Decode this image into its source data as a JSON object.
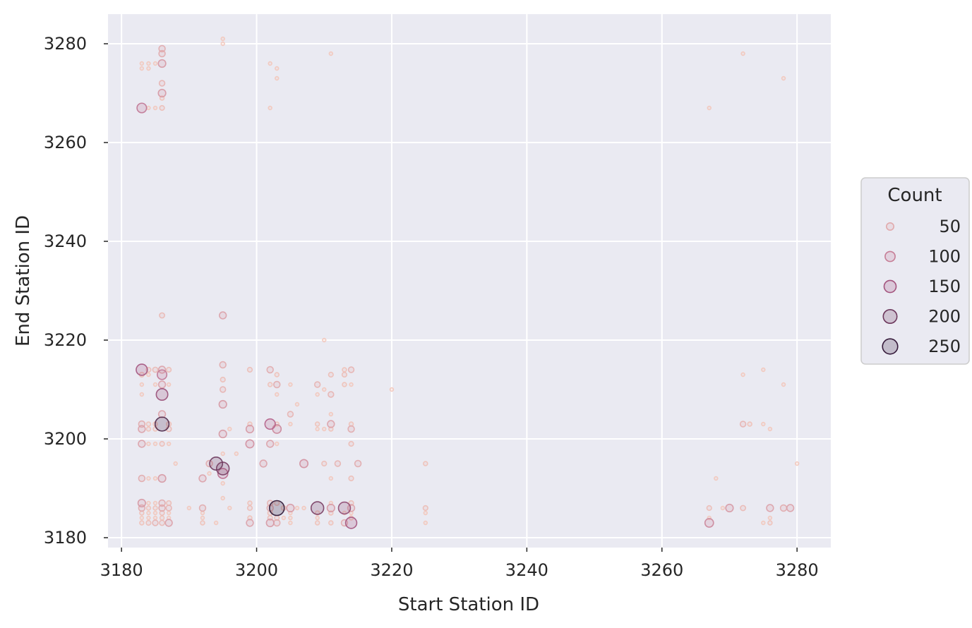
{
  "chart_data": {
    "type": "scatter",
    "xlabel": "Start Station ID",
    "ylabel": "End Station ID",
    "xlim": [
      3178,
      3285
    ],
    "ylim": [
      3178,
      3286
    ],
    "xticks": [
      3180,
      3200,
      3220,
      3240,
      3260,
      3280
    ],
    "yticks": [
      3180,
      3200,
      3220,
      3240,
      3260,
      3280
    ],
    "grid": true,
    "background_color": "#eaeaf2",
    "grid_color": "#ffffff",
    "legend": {
      "title": "Count",
      "placement": "right",
      "entries": [
        {
          "label": "50",
          "value": 50
        },
        {
          "label": "100",
          "value": 100
        },
        {
          "label": "150",
          "value": 150
        },
        {
          "label": "200",
          "value": 200
        },
        {
          "label": "250",
          "value": 250
        }
      ]
    },
    "color_scale": {
      "low": "#f3c7ba",
      "mid": "#b05a85",
      "high": "#2a1433"
    },
    "points": [
      [
        3183,
        3276,
        18
      ],
      [
        3183,
        3275,
        18
      ],
      [
        3184,
        3276,
        18
      ],
      [
        3184,
        3275,
        18
      ],
      [
        3185,
        3276,
        18
      ],
      [
        3186,
        3276,
        70
      ],
      [
        3186,
        3279,
        50
      ],
      [
        3186,
        3278,
        50
      ],
      [
        3186,
        3272,
        40
      ],
      [
        3186,
        3270,
        70
      ],
      [
        3186,
        3269,
        25
      ],
      [
        3183,
        3267,
        110
      ],
      [
        3184,
        3267,
        18
      ],
      [
        3185,
        3267,
        18
      ],
      [
        3186,
        3267,
        30
      ],
      [
        3195,
        3281,
        18
      ],
      [
        3195,
        3280,
        18
      ],
      [
        3202,
        3276,
        18
      ],
      [
        3203,
        3275,
        18
      ],
      [
        3203,
        3273,
        18
      ],
      [
        3202,
        3267,
        18
      ],
      [
        3211,
        3278,
        18
      ],
      [
        3186,
        3225,
        35
      ],
      [
        3195,
        3225,
        60
      ],
      [
        3210,
        3220,
        18
      ],
      [
        3183,
        3214,
        150
      ],
      [
        3184,
        3214,
        30
      ],
      [
        3185,
        3214,
        35
      ],
      [
        3186,
        3214,
        60
      ],
      [
        3187,
        3214,
        30
      ],
      [
        3183,
        3213,
        30
      ],
      [
        3184,
        3213,
        18
      ],
      [
        3186,
        3213,
        110
      ],
      [
        3183,
        3211,
        18
      ],
      [
        3185,
        3211,
        18
      ],
      [
        3186,
        3211,
        60
      ],
      [
        3187,
        3211,
        18
      ],
      [
        3183,
        3209,
        18
      ],
      [
        3186,
        3209,
        160
      ],
      [
        3186,
        3205,
        60
      ],
      [
        3183,
        3203,
        50
      ],
      [
        3184,
        3203,
        25
      ],
      [
        3185,
        3203,
        25
      ],
      [
        3186,
        3203,
        230
      ],
      [
        3187,
        3203,
        30
      ],
      [
        3183,
        3202,
        60
      ],
      [
        3184,
        3202,
        25
      ],
      [
        3185,
        3202,
        25
      ],
      [
        3187,
        3202,
        35
      ],
      [
        3183,
        3199,
        60
      ],
      [
        3184,
        3199,
        18
      ],
      [
        3185,
        3199,
        18
      ],
      [
        3186,
        3199,
        30
      ],
      [
        3187,
        3199,
        18
      ],
      [
        3183,
        3192,
        50
      ],
      [
        3184,
        3192,
        18
      ],
      [
        3185,
        3192,
        18
      ],
      [
        3186,
        3192,
        70
      ],
      [
        3188,
        3195,
        18
      ],
      [
        3183,
        3187,
        70
      ],
      [
        3184,
        3187,
        18
      ],
      [
        3185,
        3187,
        18
      ],
      [
        3186,
        3187,
        50
      ],
      [
        3187,
        3187,
        30
      ],
      [
        3183,
        3186,
        50
      ],
      [
        3184,
        3186,
        25
      ],
      [
        3185,
        3186,
        25
      ],
      [
        3186,
        3186,
        50
      ],
      [
        3187,
        3186,
        40
      ],
      [
        3183,
        3185,
        25
      ],
      [
        3184,
        3185,
        18
      ],
      [
        3185,
        3185,
        18
      ],
      [
        3186,
        3185,
        30
      ],
      [
        3187,
        3185,
        18
      ],
      [
        3183,
        3184,
        18
      ],
      [
        3184,
        3184,
        18
      ],
      [
        3185,
        3184,
        18
      ],
      [
        3186,
        3184,
        25
      ],
      [
        3187,
        3184,
        18
      ],
      [
        3183,
        3183,
        25
      ],
      [
        3184,
        3183,
        30
      ],
      [
        3185,
        3183,
        40
      ],
      [
        3186,
        3183,
        35
      ],
      [
        3187,
        3183,
        60
      ],
      [
        3190,
        3186,
        18
      ],
      [
        3192,
        3186,
        50
      ],
      [
        3192,
        3185,
        18
      ],
      [
        3192,
        3184,
        18
      ],
      [
        3192,
        3183,
        25
      ],
      [
        3192,
        3192,
        60
      ],
      [
        3193,
        3195,
        50
      ],
      [
        3194,
        3195,
        200
      ],
      [
        3195,
        3194,
        190
      ],
      [
        3195,
        3193,
        120
      ],
      [
        3193,
        3193,
        18
      ],
      [
        3195,
        3191,
        18
      ],
      [
        3194,
        3183,
        18
      ],
      [
        3195,
        3188,
        18
      ],
      [
        3196,
        3186,
        18
      ],
      [
        3195,
        3197,
        18
      ],
      [
        3196,
        3202,
        18
      ],
      [
        3197,
        3197,
        18
      ],
      [
        3195,
        3215,
        50
      ],
      [
        3195,
        3212,
        30
      ],
      [
        3195,
        3210,
        40
      ],
      [
        3195,
        3207,
        70
      ],
      [
        3195,
        3201,
        70
      ],
      [
        3199,
        3214,
        30
      ],
      [
        3199,
        3203,
        25
      ],
      [
        3199,
        3202,
        70
      ],
      [
        3199,
        3199,
        80
      ],
      [
        3199,
        3187,
        25
      ],
      [
        3199,
        3186,
        30
      ],
      [
        3199,
        3184,
        25
      ],
      [
        3199,
        3183,
        60
      ],
      [
        3201,
        3195,
        60
      ],
      [
        3202,
        3214,
        50
      ],
      [
        3202,
        3211,
        25
      ],
      [
        3202,
        3203,
        130
      ],
      [
        3203,
        3202,
        90
      ],
      [
        3203,
        3213,
        25
      ],
      [
        3203,
        3211,
        50
      ],
      [
        3203,
        3209,
        18
      ],
      [
        3202,
        3199,
        60
      ],
      [
        3203,
        3199,
        18
      ],
      [
        3203,
        3203,
        25
      ],
      [
        3202,
        3187,
        40
      ],
      [
        3202,
        3186,
        50
      ],
      [
        3202,
        3185,
        30
      ],
      [
        3202,
        3184,
        30
      ],
      [
        3202,
        3183,
        70
      ],
      [
        3203,
        3186,
        260
      ],
      [
        3203,
        3187,
        30
      ],
      [
        3203,
        3184,
        30
      ],
      [
        3203,
        3183,
        50
      ],
      [
        3204,
        3186,
        30
      ],
      [
        3204,
        3184,
        18
      ],
      [
        3205,
        3205,
        40
      ],
      [
        3205,
        3211,
        18
      ],
      [
        3205,
        3203,
        18
      ],
      [
        3206,
        3207,
        18
      ],
      [
        3205,
        3186,
        70
      ],
      [
        3205,
        3185,
        18
      ],
      [
        3205,
        3184,
        18
      ],
      [
        3205,
        3183,
        18
      ],
      [
        3206,
        3186,
        18
      ],
      [
        3207,
        3186,
        18
      ],
      [
        3207,
        3195,
        80
      ],
      [
        3209,
        3211,
        40
      ],
      [
        3209,
        3209,
        18
      ],
      [
        3209,
        3203,
        25
      ],
      [
        3209,
        3202,
        18
      ],
      [
        3209,
        3186,
        190
      ],
      [
        3209,
        3185,
        25
      ],
      [
        3209,
        3184,
        18
      ],
      [
        3209,
        3183,
        25
      ],
      [
        3210,
        3210,
        18
      ],
      [
        3210,
        3202,
        18
      ],
      [
        3210,
        3195,
        30
      ],
      [
        3211,
        3213,
        30
      ],
      [
        3211,
        3209,
        40
      ],
      [
        3211,
        3205,
        18
      ],
      [
        3211,
        3203,
        60
      ],
      [
        3211,
        3202,
        25
      ],
      [
        3211,
        3192,
        18
      ],
      [
        3211,
        3187,
        18
      ],
      [
        3211,
        3186,
        70
      ],
      [
        3211,
        3185,
        25
      ],
      [
        3211,
        3183,
        25
      ],
      [
        3212,
        3195,
        40
      ],
      [
        3213,
        3214,
        25
      ],
      [
        3213,
        3213,
        30
      ],
      [
        3213,
        3211,
        25
      ],
      [
        3213,
        3186,
        170
      ],
      [
        3213,
        3183,
        50
      ],
      [
        3213,
        3185,
        18
      ],
      [
        3214,
        3214,
        40
      ],
      [
        3214,
        3211,
        18
      ],
      [
        3214,
        3203,
        25
      ],
      [
        3214,
        3202,
        50
      ],
      [
        3214,
        3199,
        30
      ],
      [
        3214,
        3192,
        30
      ],
      [
        3214,
        3187,
        30
      ],
      [
        3214,
        3186,
        60
      ],
      [
        3214,
        3185,
        18
      ],
      [
        3214,
        3184,
        25
      ],
      [
        3214,
        3183,
        150
      ],
      [
        3215,
        3195,
        50
      ],
      [
        3220,
        3210,
        18
      ],
      [
        3225,
        3195,
        25
      ],
      [
        3225,
        3186,
        30
      ],
      [
        3225,
        3185,
        18
      ],
      [
        3225,
        3183,
        18
      ],
      [
        3267,
        3267,
        18
      ],
      [
        3268,
        3192,
        18
      ],
      [
        3267,
        3186,
        30
      ],
      [
        3267,
        3184,
        18
      ],
      [
        3267,
        3183,
        90
      ],
      [
        3269,
        3186,
        18
      ],
      [
        3270,
        3186,
        70
      ],
      [
        3272,
        3186,
        35
      ],
      [
        3272,
        3213,
        18
      ],
      [
        3272,
        3203,
        40
      ],
      [
        3273,
        3203,
        25
      ],
      [
        3272,
        3278,
        18
      ],
      [
        3275,
        3214,
        18
      ],
      [
        3275,
        3203,
        18
      ],
      [
        3276,
        3202,
        18
      ],
      [
        3276,
        3186,
        60
      ],
      [
        3276,
        3184,
        18
      ],
      [
        3276,
        3183,
        25
      ],
      [
        3275,
        3183,
        18
      ],
      [
        3278,
        3186,
        50
      ],
      [
        3279,
        3186,
        60
      ],
      [
        3278,
        3211,
        18
      ],
      [
        3278,
        3273,
        18
      ],
      [
        3280,
        3195,
        18
      ]
    ]
  }
}
